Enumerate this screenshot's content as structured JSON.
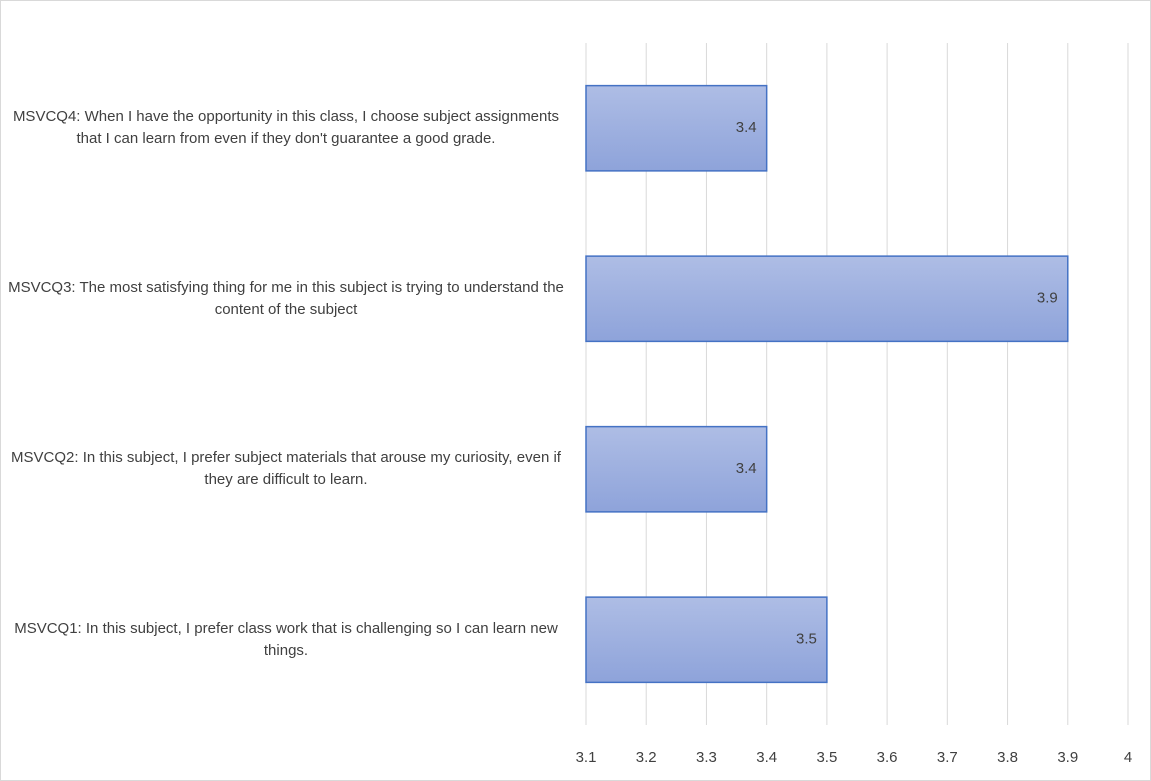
{
  "chart_data": {
    "type": "bar",
    "orientation": "horizontal",
    "categories": [
      "MSVCQ1: In this subject, I prefer class work that is challenging so I can learn new things.",
      "MSVCQ2: In this subject, I prefer subject materials that arouse my curiosity, even if they are difficult to learn.",
      "MSVCQ3: The most satisfying thing for me in this subject is trying to understand the content of the subject",
      "MSVCQ4: When I have the opportunity in this class, I choose subject assignments that I can learn from even if they don't guarantee a good grade."
    ],
    "values": [
      3.5,
      3.4,
      3.9,
      3.4
    ],
    "color": "#4472c4",
    "xlim": [
      3.1,
      4
    ],
    "xticks": [
      3.1,
      3.2,
      3.3,
      3.4,
      3.5,
      3.6,
      3.7,
      3.8,
      3.9,
      4
    ],
    "grid": true
  }
}
